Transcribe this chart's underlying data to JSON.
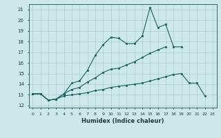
{
  "title": "",
  "xlabel": "Humidex (Indice chaleur)",
  "ylabel": "",
  "bg_color": "#cce8ea",
  "grid_color_major": "#aacccc",
  "grid_color_minor": "#bbdddd",
  "line_color": "#1a5f5a",
  "xlim": [
    -0.5,
    23.5
  ],
  "ylim": [
    11.8,
    21.5
  ],
  "xticks": [
    0,
    1,
    2,
    3,
    4,
    5,
    6,
    7,
    8,
    9,
    10,
    11,
    12,
    13,
    14,
    15,
    16,
    17,
    18,
    19,
    20,
    21,
    22,
    23
  ],
  "yticks": [
    12,
    13,
    14,
    15,
    16,
    17,
    18,
    19,
    20,
    21
  ],
  "line1_x": [
    0,
    1,
    2,
    3,
    4,
    5,
    6,
    7,
    8,
    9,
    10,
    11,
    12,
    13,
    14,
    15,
    16,
    17,
    18,
    19
  ],
  "line1_y": [
    13.1,
    13.1,
    12.5,
    12.6,
    13.1,
    14.1,
    14.3,
    15.3,
    16.7,
    17.7,
    18.4,
    18.3,
    17.8,
    17.8,
    18.5,
    21.2,
    19.3,
    19.6,
    17.5,
    17.5
  ],
  "line2_x": [
    0,
    1,
    2,
    3,
    4,
    5,
    6,
    7,
    8,
    9,
    10,
    11,
    12,
    13,
    14,
    15,
    16,
    17
  ],
  "line2_y": [
    13.1,
    13.1,
    12.5,
    12.6,
    13.1,
    13.5,
    13.7,
    14.2,
    14.6,
    15.1,
    15.4,
    15.5,
    15.8,
    16.1,
    16.5,
    16.9,
    17.2,
    17.5
  ],
  "line3_x": [
    0,
    1,
    2,
    3,
    4,
    5,
    6,
    7,
    8,
    9,
    10,
    11,
    12,
    13,
    14,
    15,
    16,
    17,
    18,
    19,
    20,
    21,
    22
  ],
  "line3_y": [
    13.1,
    13.1,
    12.5,
    12.6,
    12.9,
    13.0,
    13.1,
    13.2,
    13.4,
    13.5,
    13.7,
    13.8,
    13.9,
    14.0,
    14.1,
    14.3,
    14.5,
    14.7,
    14.9,
    15.0,
    14.1,
    14.1,
    12.9
  ]
}
